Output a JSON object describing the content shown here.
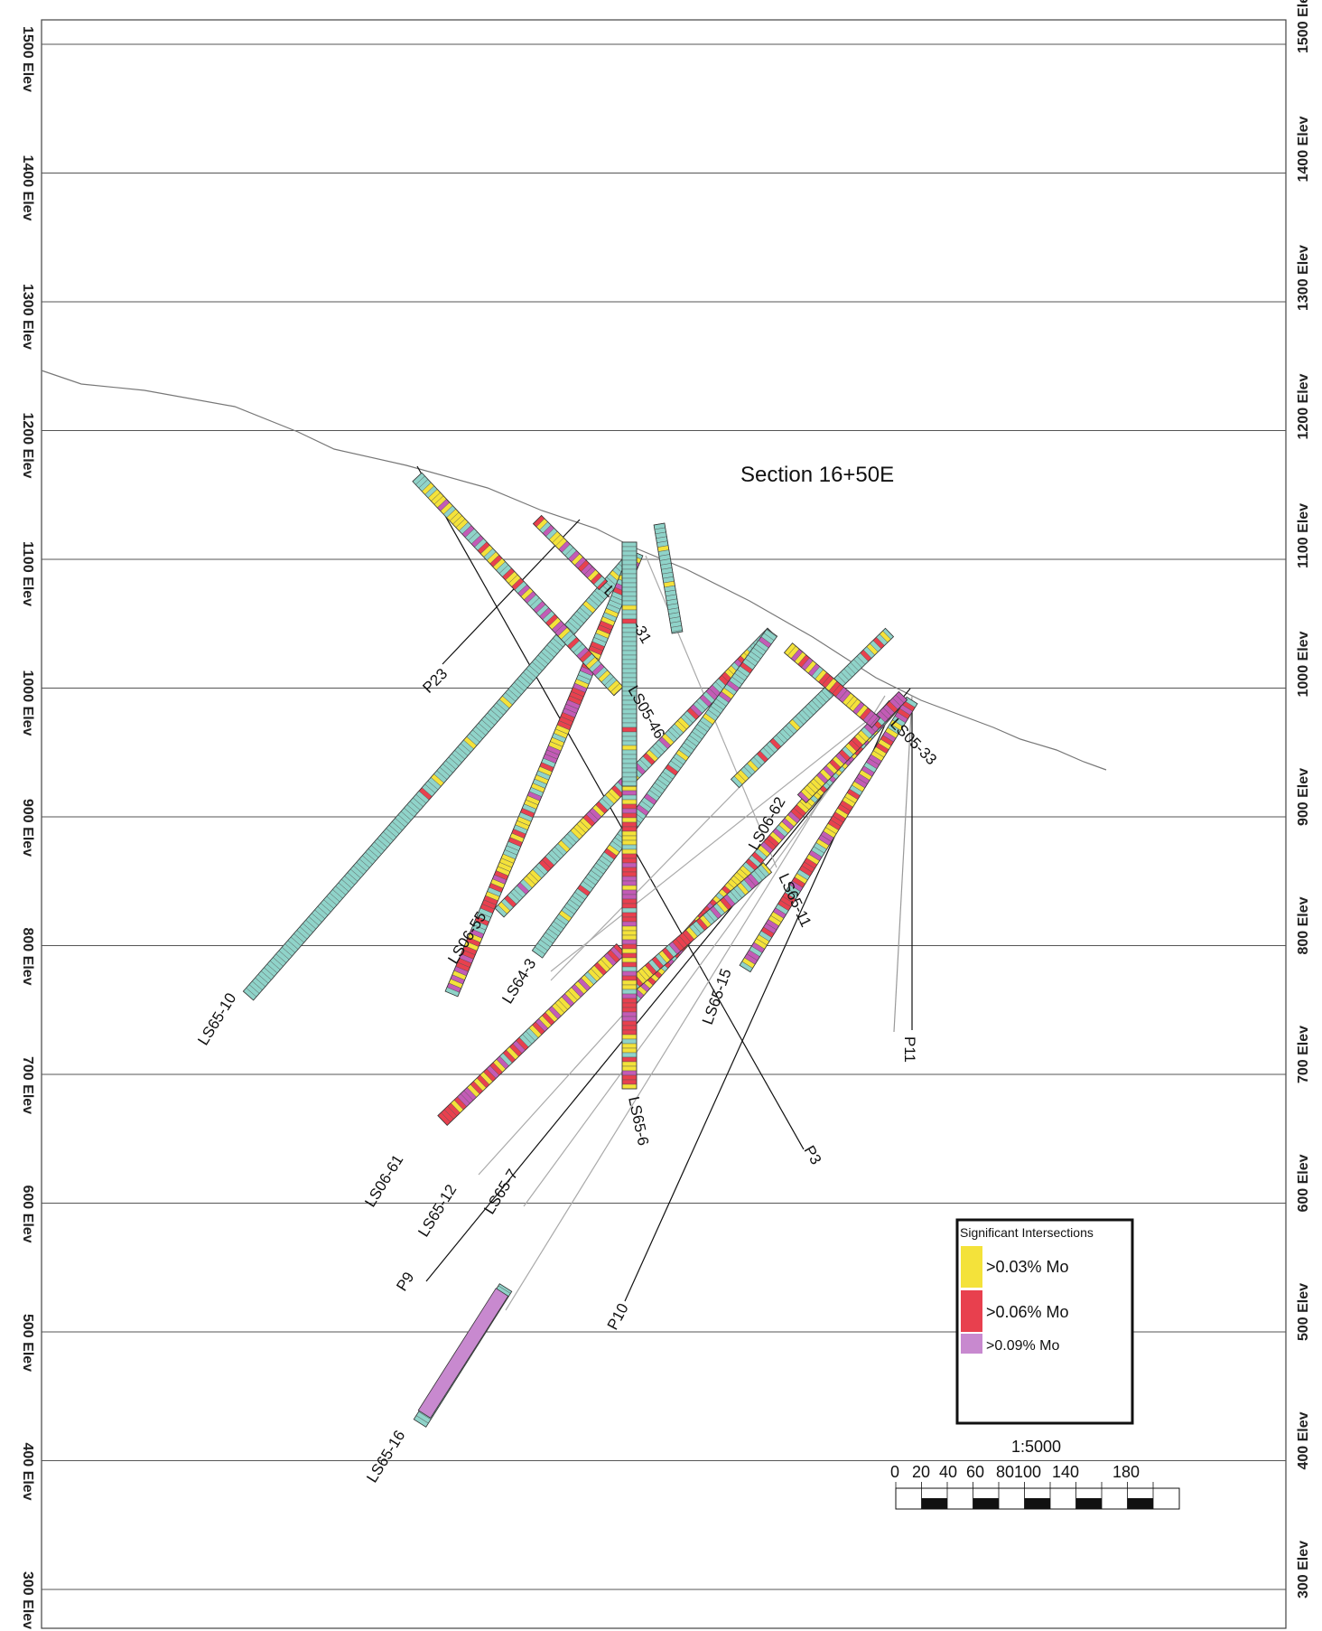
{
  "title": "Section 16+50E",
  "elevation_labels": [
    "1500 Elev",
    "1400 Elev",
    "1300 Elev",
    "1200 Elev",
    "1100 Elev",
    "1000 Elev",
    "900 Elev",
    "800 Elev",
    "700 Elev",
    "600 Elev",
    "500 Elev",
    "400 Elev",
    "300 Elev"
  ],
  "legend": {
    "title": "Significant Intersections",
    "items": [
      {
        "label": ">0.03% Mo",
        "color": "#f4e23a"
      },
      {
        "label": ">0.06% Mo",
        "color": "#e8404e"
      },
      {
        "label": ">0.09% Mo",
        "color": "#c889cf"
      }
    ]
  },
  "scale": {
    "ratio": "1:5000",
    "ticks": [
      "0",
      "20",
      "40",
      "60",
      "80100",
      "140",
      "180"
    ]
  },
  "colors": {
    "barren": "#8fd3c9",
    "mo_low": "#f4e23a",
    "mo_mid": "#e8404e",
    "mo_high": "#c35bb6",
    "mo_purple": "#c889cf"
  },
  "holes": [
    {
      "label": "LS65-10"
    },
    {
      "label": "LS06-55"
    },
    {
      "label": "LS64-3"
    },
    {
      "label": "LS06-61"
    },
    {
      "label": "LS65-12"
    },
    {
      "label": "LS65-7"
    },
    {
      "label": "LS65-6"
    },
    {
      "label": "LS65-15"
    },
    {
      "label": "LS06-62"
    },
    {
      "label": "LS05-33"
    },
    {
      "label": "LS65-11"
    },
    {
      "label": "LS05-46"
    },
    {
      "label": "L"
    },
    {
      "label": "-31"
    },
    {
      "label": "LS65-16"
    },
    {
      "label": "P23"
    },
    {
      "label": "P9"
    },
    {
      "label": "P10"
    },
    {
      "label": "P3"
    },
    {
      "label": "P11"
    }
  ]
}
